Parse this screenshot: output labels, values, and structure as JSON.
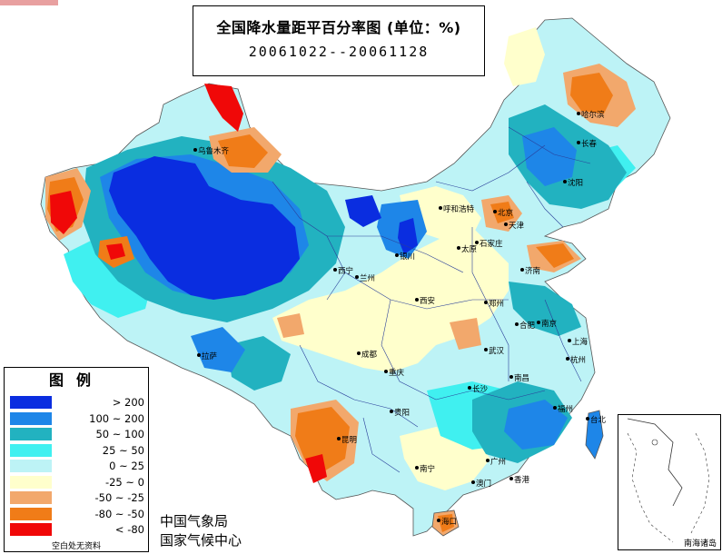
{
  "title": {
    "line1": "全国降水量距平百分率图 (单位：%)",
    "line2": "20061022--20061128"
  },
  "legend": {
    "title": "图例",
    "items": [
      {
        "label": "> 200",
        "color": "#0a2de0"
      },
      {
        "label": "100 ~ 200",
        "color": "#1e86e8"
      },
      {
        "label": "50 ~ 100",
        "color": "#22b2c0"
      },
      {
        "label": "25 ~ 50",
        "color": "#40f0f0"
      },
      {
        "label": "0 ~ 25",
        "color": "#bdf3f6"
      },
      {
        "label": "-25 ~ 0",
        "color": "#ffffcc"
      },
      {
        "label": "-50 ~ -25",
        "color": "#f2a86c"
      },
      {
        "label": "-80 ~ -50",
        "color": "#f07c18"
      },
      {
        "label": "< -80",
        "color": "#f00808"
      }
    ],
    "footnote": "空白处无资料"
  },
  "credits": {
    "line1": "中国气象局",
    "line2": "国家气候中心"
  },
  "inset": {
    "label": "南海诸岛"
  },
  "cities": [
    {
      "name": "乌鲁木齐"
    },
    {
      "name": "哈尔滨"
    },
    {
      "name": "长春"
    },
    {
      "name": "沈阳"
    },
    {
      "name": "呼和浩特"
    },
    {
      "name": "北京"
    },
    {
      "name": "天津"
    },
    {
      "name": "石家庄"
    },
    {
      "name": "太原"
    },
    {
      "name": "银川"
    },
    {
      "name": "西宁"
    },
    {
      "name": "兰州"
    },
    {
      "name": "济南"
    },
    {
      "name": "郑州"
    },
    {
      "name": "西安"
    },
    {
      "name": "合肥"
    },
    {
      "name": "南京"
    },
    {
      "name": "上海"
    },
    {
      "name": "拉萨"
    },
    {
      "name": "成都"
    },
    {
      "name": "武汉"
    },
    {
      "name": "杭州"
    },
    {
      "name": "重庆"
    },
    {
      "name": "南昌"
    },
    {
      "name": "长沙"
    },
    {
      "name": "福州"
    },
    {
      "name": "贵阳"
    },
    {
      "name": "台北"
    },
    {
      "name": "昆明"
    },
    {
      "name": "南宁"
    },
    {
      "name": "广州"
    },
    {
      "name": "香港"
    },
    {
      "name": "澳门"
    },
    {
      "name": "海口"
    }
  ]
}
